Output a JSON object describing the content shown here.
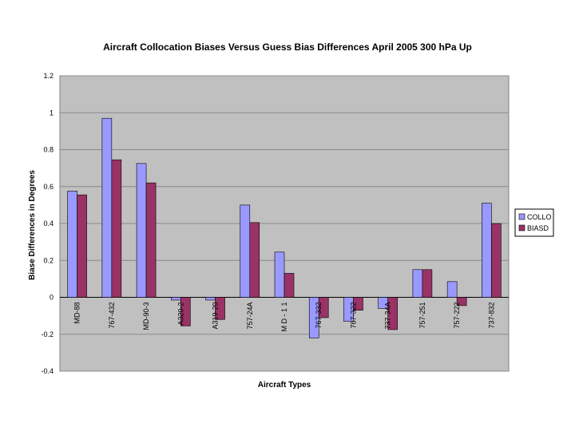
{
  "chart_data": {
    "type": "bar",
    "title": "Aircraft Collocation Biases Versus Guess Bias Differences April 2005 300 hPa Up",
    "xlabel": "Aircraft Types",
    "ylabel": "Biase Differences in Degrees",
    "ylim": [
      -0.4,
      1.2
    ],
    "yticks": [
      "1.2",
      "1",
      "0.8",
      "0.6",
      "0.4",
      "0.2",
      "0",
      "-0.2",
      "-0.4"
    ],
    "categories": [
      "MD-88",
      "767-432",
      "MD-90-3",
      "A320-2",
      "A319-20",
      "757-24A",
      "M D - 1 1",
      "767-332",
      "767-322",
      "737-34A",
      "757-251",
      "757-222",
      "737-832"
    ],
    "series": [
      {
        "name": "COLLO",
        "color": "#9999ff",
        "values": [
          0.575,
          0.97,
          0.725,
          -0.015,
          -0.015,
          0.5,
          0.245,
          -0.22,
          -0.13,
          -0.06,
          0.15,
          0.085,
          0.51
        ]
      },
      {
        "name": "BIASD",
        "color": "#993366",
        "values": [
          0.555,
          0.745,
          0.62,
          -0.155,
          -0.12,
          0.405,
          0.13,
          -0.11,
          -0.07,
          -0.175,
          0.15,
          -0.045,
          0.4
        ]
      }
    ],
    "legend_position": "right",
    "gridlines": true,
    "plot_background": "#c0c0c0"
  }
}
